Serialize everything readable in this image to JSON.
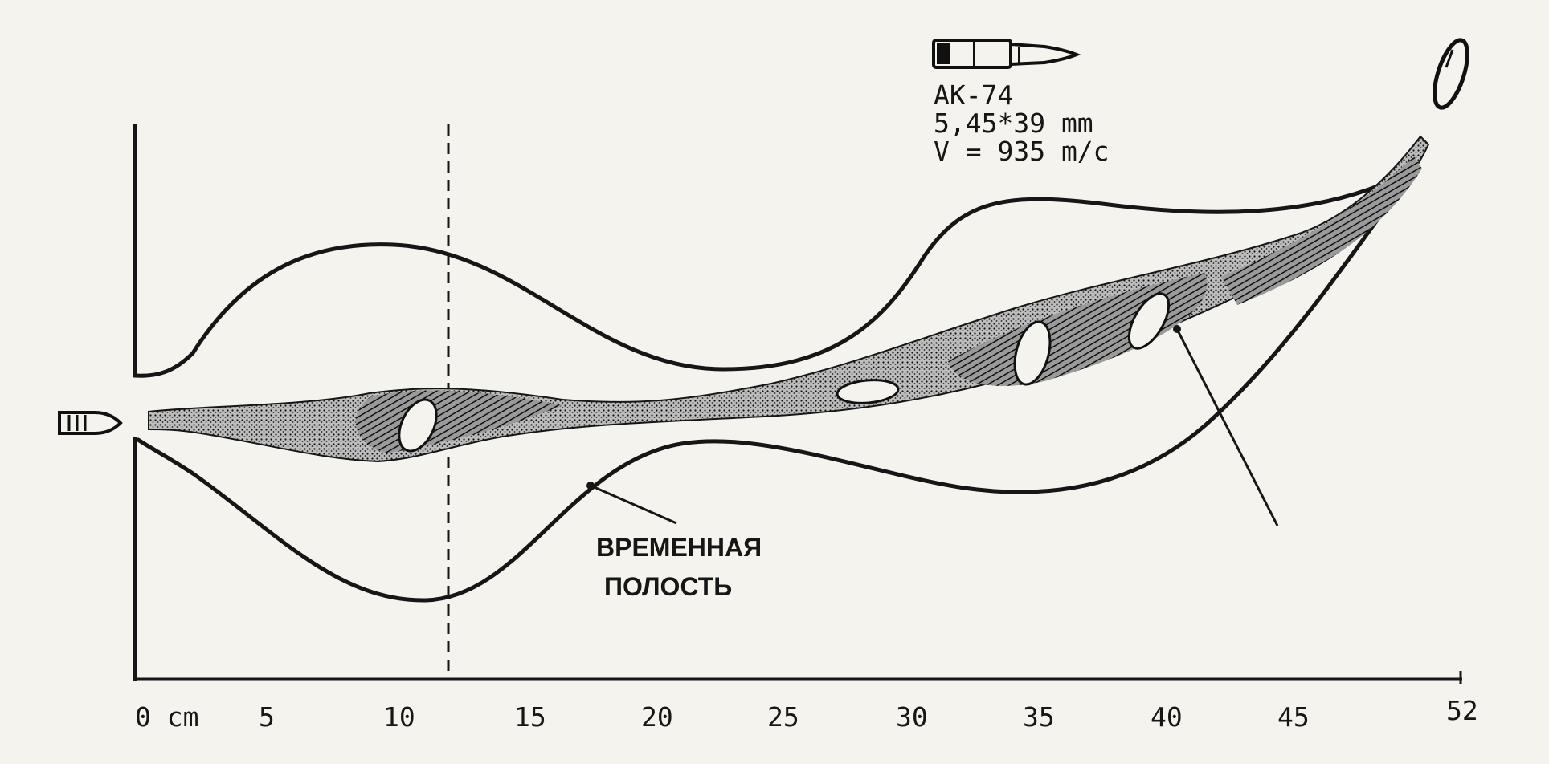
{
  "diagram": {
    "cartridge": {
      "model": "AK-74",
      "caliber": "5,45*39 mm",
      "velocity": "V = 935 m/c"
    },
    "annotation": {
      "line1": "ВРЕМЕННАЯ",
      "line2": "ПОЛОСТЬ"
    },
    "axis": {
      "ticks": [
        "0 cm",
        "5",
        "10",
        "15",
        "20",
        "25",
        "30",
        "35",
        "40",
        "45",
        "52"
      ]
    },
    "colors": {
      "ink": "#161616",
      "paper": "#f4f3ee",
      "shade": "#2a2a2a"
    }
  }
}
